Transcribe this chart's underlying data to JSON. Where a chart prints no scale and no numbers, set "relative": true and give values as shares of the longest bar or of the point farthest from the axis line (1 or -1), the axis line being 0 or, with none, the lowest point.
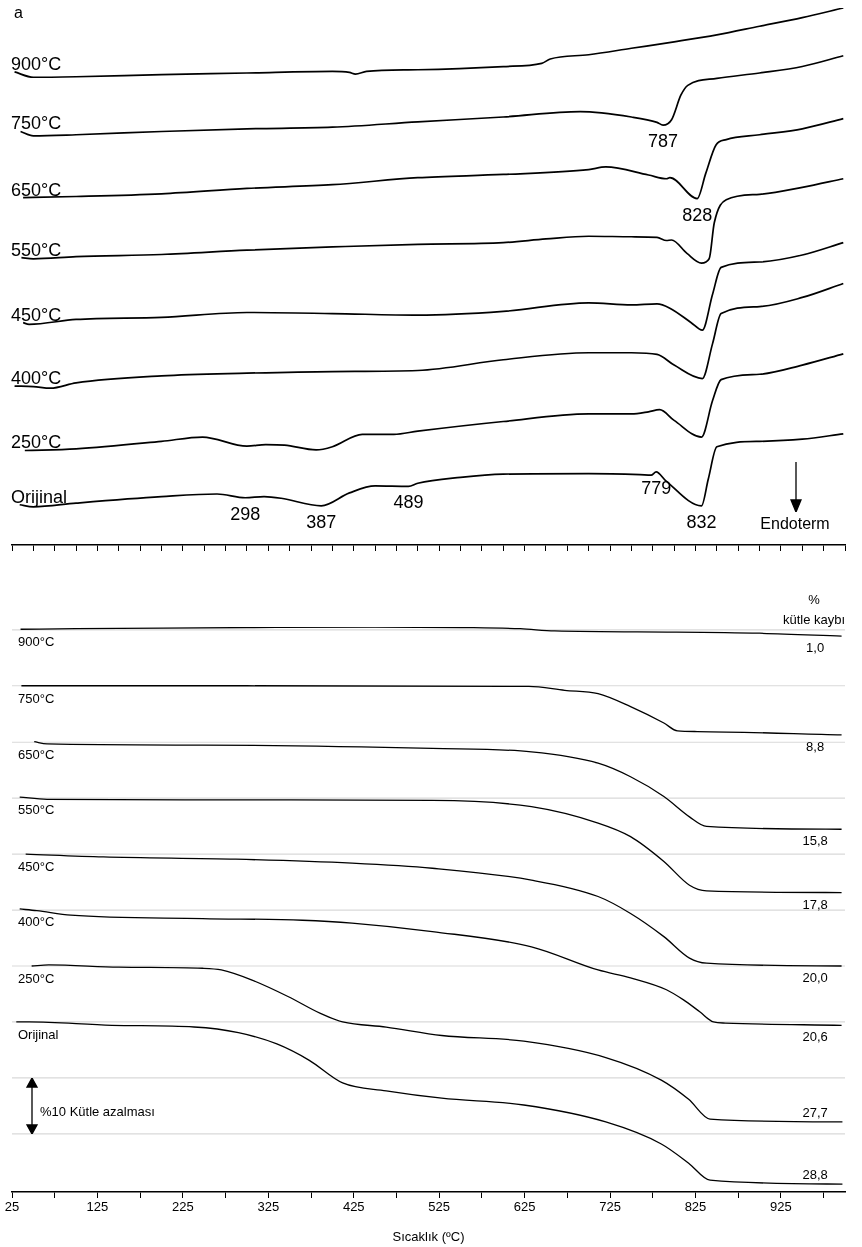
{
  "chart_data": [
    {
      "type": "line",
      "title": "a",
      "relative": true,
      "marker": "none",
      "tick_labels": false,
      "xlim": [
        25,
        1000
      ],
      "xticks": [
        {
          "value": 25,
          "label": null
        },
        {
          "value": 50,
          "label": null
        },
        {
          "value": 75,
          "label": null
        },
        {
          "value": 100,
          "label": null
        },
        {
          "value": 125,
          "label": null
        },
        {
          "value": 150,
          "label": null
        },
        {
          "value": 175,
          "label": null
        },
        {
          "value": 200,
          "label": null
        },
        {
          "value": 225,
          "label": null
        },
        {
          "value": 250,
          "label": null
        },
        {
          "value": 275,
          "label": null
        },
        {
          "value": 300,
          "label": null
        },
        {
          "value": 325,
          "label": null
        },
        {
          "value": 350,
          "label": null
        },
        {
          "value": 375,
          "label": null
        },
        {
          "value": 400,
          "label": null
        },
        {
          "value": 425,
          "label": null
        },
        {
          "value": 450,
          "label": null
        },
        {
          "value": 475,
          "label": null
        },
        {
          "value": 500,
          "label": null
        },
        {
          "value": 525,
          "label": null
        },
        {
          "value": 550,
          "label": null
        },
        {
          "value": 575,
          "label": null
        },
        {
          "value": 600,
          "label": null
        },
        {
          "value": 625,
          "label": null
        },
        {
          "value": 650,
          "label": null
        },
        {
          "value": 675,
          "label": null
        },
        {
          "value": 700,
          "label": null
        },
        {
          "value": 725,
          "label": null
        },
        {
          "value": 750,
          "label": null
        },
        {
          "value": 775,
          "label": null
        },
        {
          "value": 800,
          "label": null
        },
        {
          "value": 825,
          "label": null
        },
        {
          "value": 850,
          "label": null
        },
        {
          "value": 875,
          "label": null
        },
        {
          "value": 900,
          "label": null
        },
        {
          "value": 925,
          "label": null
        },
        {
          "value": 950,
          "label": null
        },
        {
          "value": 975,
          "label": null
        },
        {
          "value": 1000,
          "label": null
        }
      ],
      "series": [
        {
          "name": "900°C",
          "color": "#000000",
          "x": [
            28,
            50,
            100,
            200,
            300,
            400,
            420,
            427,
            440,
            500,
            600,
            645,
            655,
            700,
            750,
            800,
            850,
            900,
            950,
            998
          ],
          "values": [
            0.881,
            0.871,
            0.872,
            0.876,
            0.879,
            0.882,
            0.88,
            0.877,
            0.882,
            0.885,
            0.891,
            0.897,
            0.905,
            0.913,
            0.925,
            0.937,
            0.95,
            0.966,
            0.982,
            1
          ]
        },
        {
          "name": "750°C",
          "color": "#000000",
          "x": [
            35,
            50,
            100,
            200,
            300,
            400,
            500,
            600,
            690,
            750,
            780,
            787,
            797,
            808,
            816,
            850,
            900,
            950,
            998
          ],
          "values": [
            0.77,
            0.762,
            0.764,
            0.77,
            0.775,
            0.778,
            0.788,
            0.797,
            0.807,
            0.797,
            0.787,
            0.782,
            0.792,
            0.838,
            0.856,
            0.869,
            0.879,
            0.891,
            0.911
          ]
        },
        {
          "name": "650°C",
          "color": "#000000",
          "x": [
            38,
            100,
            200,
            300,
            400,
            500,
            600,
            700,
            720,
            770,
            791,
            795,
            827,
            837,
            849,
            861,
            900,
            950,
            998
          ],
          "values": [
            0.647,
            0.649,
            0.654,
            0.664,
            0.671,
            0.684,
            0.69,
            0.699,
            0.704,
            0.689,
            0.682,
            0.684,
            0.645,
            0.692,
            0.745,
            0.755,
            0.764,
            0.775,
            0.794
          ]
        },
        {
          "name": "550°C",
          "color": "#000000",
          "x": [
            36,
            50,
            100,
            200,
            300,
            400,
            500,
            600,
            650,
            700,
            750,
            780,
            791,
            797,
            815,
            832,
            841,
            847,
            861,
            900,
            950,
            998
          ],
          "values": [
            0.535,
            0.533,
            0.537,
            0.541,
            0.549,
            0.555,
            0.56,
            0.563,
            0.57,
            0.575,
            0.574,
            0.573,
            0.567,
            0.568,
            0.543,
            0.525,
            0.533,
            0.6,
            0.643,
            0.653,
            0.666,
            0.682
          ]
        },
        {
          "name": "450°C",
          "color": "#000000",
          "x": [
            38,
            45,
            100,
            200,
            300,
            400,
            500,
            600,
            700,
            750,
            780,
            795,
            820,
            833,
            845,
            855,
            900,
            950,
            998
          ],
          "values": [
            0.414,
            0.411,
            0.42,
            0.424,
            0.433,
            0.431,
            0.428,
            0.435,
            0.451,
            0.447,
            0.449,
            0.441,
            0.414,
            0.4,
            0.467,
            0.517,
            0.527,
            0.54,
            0.563
          ]
        },
        {
          "name": "400°C",
          "color": "#000000",
          "x": [
            28,
            50,
            70,
            100,
            200,
            300,
            400,
            500,
            600,
            700,
            750,
            780,
            800,
            833,
            845,
            855,
            900,
            950,
            998
          ],
          "values": [
            0.296,
            0.295,
            0.292,
            0.302,
            0.315,
            0.32,
            0.323,
            0.325,
            0.345,
            0.358,
            0.358,
            0.355,
            0.335,
            0.31,
            0.375,
            0.431,
            0.444,
            0.461,
            0.487
          ]
        },
        {
          "name": "250°C",
          "color": "#000000",
          "x": [
            40,
            100,
            200,
            248,
            300,
            322,
            344,
            381,
            400,
            435,
            472,
            500,
            600,
            700,
            750,
            770,
            783,
            800,
            832,
            845,
            855,
            900,
            950,
            998
          ],
          "values": [
            0.176,
            0.179,
            0.193,
            0.201,
            0.184,
            0.187,
            0.186,
            0.177,
            0.183,
            0.206,
            0.206,
            0.212,
            0.23,
            0.244,
            0.244,
            0.248,
            0.252,
            0.232,
            0.201,
            0.269,
            0.308,
            0.318,
            0.335,
            0.356
          ]
        },
        {
          "name": "Orijinal",
          "color": "#000000",
          "x": [
            34,
            50,
            100,
            200,
            265,
            298,
            320,
            340,
            387,
            420,
            450,
            489,
            500,
            550,
            600,
            700,
            760,
            773,
            779,
            790,
            832,
            840,
            850,
            900,
            950,
            998
          ],
          "values": [
            0.075,
            0.071,
            0.078,
            0.09,
            0.095,
            0.088,
            0.09,
            0.087,
            0.073,
            0.097,
            0.11,
            0.109,
            0.115,
            0.126,
            0.132,
            0.133,
            0.131,
            0.13,
            0.136,
            0.12,
            0.073,
            0.123,
            0.183,
            0.193,
            0.197,
            0.207
          ]
        }
      ],
      "annotations": [
        {
          "text": "787",
          "x": 787,
          "y": 0.782
        },
        {
          "text": "828",
          "x": 827,
          "y": 0.645
        },
        {
          "text": "298",
          "x": 298,
          "y": 0.088
        },
        {
          "text": "387",
          "x": 387,
          "y": 0.073
        },
        {
          "text": "489",
          "x": 489,
          "y": 0.109
        },
        {
          "text": "779",
          "x": 779,
          "y": 0.136
        },
        {
          "text": "832",
          "x": 832,
          "y": 0.073
        },
        "Endoterm"
      ]
    },
    {
      "type": "line",
      "relative": true,
      "marker": "none",
      "tick_labels": "x",
      "xlabel": "Sıcaklık (ºC)",
      "xlim": [
        25,
        1000
      ],
      "xticks": [
        25,
        {
          "value": 75,
          "label": null
        },
        125,
        {
          "value": 175,
          "label": null
        },
        225,
        {
          "value": 275,
          "label": null
        },
        325,
        {
          "value": 375,
          "label": null
        },
        425,
        {
          "value": 475,
          "label": null
        },
        525,
        {
          "value": 575,
          "label": null
        },
        625,
        {
          "value": 675,
          "label": null
        },
        725,
        {
          "value": 775,
          "label": null
        },
        825,
        {
          "value": 875,
          "label": null
        },
        925,
        {
          "value": 975,
          "label": null
        }
      ],
      "ref_lines": [
        {
          "axis": "y",
          "value": 0.995,
          "color": "#d9d9d9"
        },
        {
          "axis": "y",
          "value": 0.896,
          "color": "#d9d9d9"
        },
        {
          "axis": "y",
          "value": 0.796,
          "color": "#d9d9d9"
        },
        {
          "axis": "y",
          "value": 0.697,
          "color": "#d9d9d9"
        },
        {
          "axis": "y",
          "value": 0.598,
          "color": "#d9d9d9"
        },
        {
          "axis": "y",
          "value": 0.499,
          "color": "#d9d9d9"
        },
        {
          "axis": "y",
          "value": 0.4,
          "color": "#d9d9d9"
        },
        {
          "axis": "y",
          "value": 0.301,
          "color": "#d9d9d9"
        },
        {
          "axis": "y",
          "value": 0.202,
          "color": "#d9d9d9"
        },
        {
          "axis": "y",
          "value": 0.103,
          "color": "#d9d9d9"
        }
      ],
      "series": [
        {
          "name": "900°C",
          "color": "#000000",
          "x": [
            35,
            100,
            300,
            450,
            550,
            620,
            660,
            800,
            900,
            996
          ],
          "values": [
            0.996,
            0.997,
            0.999,
            1,
            0.999,
            0.997,
            0.993,
            0.991,
            0.989,
            0.984
          ]
        },
        {
          "name": "750°C",
          "color": "#000000",
          "x": [
            36,
            300,
            630,
            672,
            711,
            749,
            788,
            804,
            827,
            996
          ],
          "values": [
            0.896,
            0.896,
            0.895,
            0.888,
            0.882,
            0.859,
            0.83,
            0.816,
            0.815,
            0.809
          ]
        },
        {
          "name": "650°C",
          "color": "#000000",
          "x": [
            51,
            66,
            248,
            517,
            633,
            711,
            749,
            788,
            818,
            838,
            996
          ],
          "values": [
            0.797,
            0.793,
            0.791,
            0.785,
            0.779,
            0.759,
            0.735,
            0.7,
            0.664,
            0.647,
            0.642
          ]
        },
        {
          "name": "550°C",
          "color": "#000000",
          "x": [
            34,
            66,
            248,
            517,
            633,
            711,
            749,
            788,
            818,
            838,
            996
          ],
          "values": [
            0.699,
            0.695,
            0.694,
            0.693,
            0.682,
            0.653,
            0.629,
            0.585,
            0.543,
            0.533,
            0.53
          ]
        },
        {
          "name": "450°C",
          "color": "#000000",
          "x": [
            41,
            132,
            287,
            423,
            517,
            633,
            711,
            749,
            788,
            818,
            838,
            996
          ],
          "values": [
            0.598,
            0.593,
            0.589,
            0.582,
            0.573,
            0.552,
            0.523,
            0.493,
            0.452,
            0.414,
            0.405,
            0.4
          ]
        },
        {
          "name": "400°C",
          "color": "#000000",
          "x": [
            34,
            54,
            94,
            248,
            365,
            423,
            517,
            633,
            711,
            749,
            791,
            811,
            830,
            846,
            860,
            996
          ],
          "values": [
            0.501,
            0.498,
            0.49,
            0.484,
            0.481,
            0.476,
            0.461,
            0.434,
            0.393,
            0.379,
            0.358,
            0.34,
            0.319,
            0.301,
            0.299,
            0.295
          ]
        },
        {
          "name": "250°C",
          "color": "#000000",
          "x": [
            48,
            68,
            150,
            248,
            270,
            306,
            348,
            386,
            412,
            463,
            528,
            624,
            720,
            785,
            817,
            842,
            997
          ],
          "values": [
            0.4,
            0.402,
            0.398,
            0.396,
            0.393,
            0.375,
            0.346,
            0.316,
            0.301,
            0.292,
            0.277,
            0.267,
            0.238,
            0.198,
            0.164,
            0.129,
            0.124
          ]
        },
        {
          "name": "Orijinal",
          "color": "#000000",
          "x": [
            30,
            45,
            142,
            238,
            290,
            335,
            373,
            412,
            463,
            528,
            624,
            720,
            785,
            817,
            842,
            997
          ],
          "values": [
            0.301,
            0.301,
            0.295,
            0.292,
            0.282,
            0.262,
            0.233,
            0.193,
            0.179,
            0.166,
            0.154,
            0.124,
            0.085,
            0.051,
            0.021,
            0.014
          ]
        }
      ],
      "annotations": [
        "%",
        "kütle kaybı",
        "%10 Kütle azalması",
        {
          "text": "1,0",
          "x": 965,
          "y": 0.984
        },
        {
          "text": "8,8",
          "x": 965,
          "y": 0.809
        },
        {
          "text": "15,8",
          "x": 965,
          "y": 0.642
        },
        {
          "text": "17,8",
          "x": 965,
          "y": 0.53
        },
        {
          "text": "20,0",
          "x": 965,
          "y": 0.4
        },
        {
          "text": "20,6",
          "x": 965,
          "y": 0.295
        },
        {
          "text": "27,7",
          "x": 965,
          "y": 0.124
        },
        {
          "text": "28,8",
          "x": 965,
          "y": 0.014
        }
      ]
    }
  ]
}
